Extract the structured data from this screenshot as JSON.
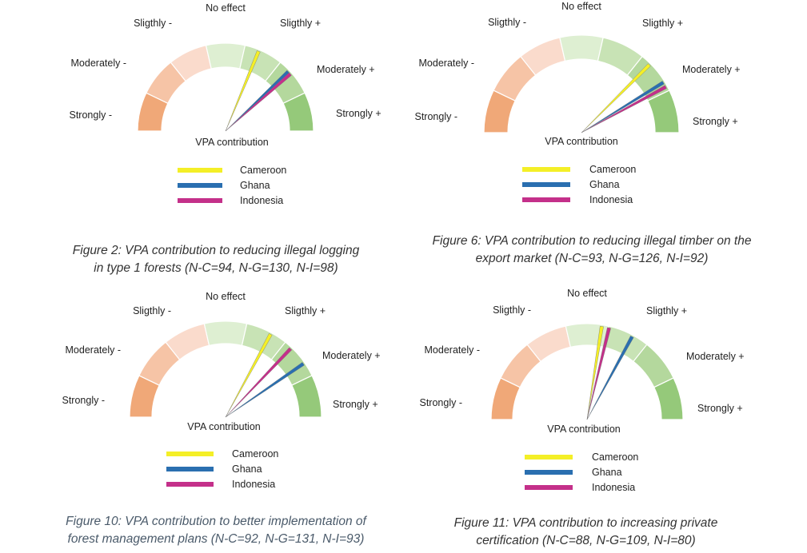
{
  "scale_labels": [
    "Strongly -",
    "Moderately -",
    "Sligthly -",
    "No effect",
    "Sligthly +",
    "Moderately +",
    "Strongly +"
  ],
  "segment_colors": [
    "#f0a878",
    "#f6c4a6",
    "#fadbcc",
    "#deefd2",
    "#c8e3b5",
    "#b4d89d",
    "#95c97a"
  ],
  "center_label": "VPA contribution",
  "series_colors": {
    "Cameroon": "#f4ef27",
    "Ghana": "#2a6fb0",
    "Indonesia": "#c4308a"
  },
  "chart_data": [
    {
      "type": "gauge",
      "title": "Figure 2: VPA contribution to reducing illegal logging in type 1 forests (N-C=94, N-G=130, N-I=98)",
      "caption_lines": [
        "Figure 2: VPA contribution to reducing illegal logging",
        "in type 1 forests (N-C=94, N-G=130, N-I=98)"
      ],
      "scale": {
        "min": -3,
        "max": 3
      },
      "series": [
        {
          "name": "Cameroon",
          "value": 0.75
        },
        {
          "name": "Ghana",
          "value": 1.55
        },
        {
          "name": "Indonesia",
          "value": 1.62
        }
      ]
    },
    {
      "type": "gauge",
      "title": "Figure 6: VPA contribution to reducing illegal timber on the export market (N-C=93, N-G=126, N-I=92)",
      "caption_lines": [
        "Figure 6: VPA contribution to reducing illegal timber on the",
        "export market (N-C=93, N-G=126, N-I=92)"
      ],
      "scale": {
        "min": -3,
        "max": 3
      },
      "series": [
        {
          "name": "Cameroon",
          "value": 1.5
        },
        {
          "name": "Ghana",
          "value": 1.95
        },
        {
          "name": "Indonesia",
          "value": 2.05
        }
      ]
    },
    {
      "type": "gauge",
      "title": "Figure 10: VPA contribution to better implementation of forest management plans (N-C=92, N-G=131, N-I=93)",
      "caption_lines": [
        "Figure 10: VPA contribution to better implementation of",
        "forest management plans (N-C=92, N-G=131, N-I=93)"
      ],
      "scale": {
        "min": -3,
        "max": 3
      },
      "series": [
        {
          "name": "Cameroon",
          "value": 0.95
        },
        {
          "name": "Ghana",
          "value": 1.85
        },
        {
          "name": "Indonesia",
          "value": 1.45
        }
      ]
    },
    {
      "type": "gauge",
      "title": "Figure 11: VPA contribution to increasing private certification (N-C=88, N-G=109, N-I=80)",
      "caption_lines": [
        "Figure 11: VPA contribution to increasing private",
        "certification (N-C=88, N-G=109, N-I=80)"
      ],
      "scale": {
        "min": -3,
        "max": 3
      },
      "series": [
        {
          "name": "Cameroon",
          "value": 0.3
        },
        {
          "name": "Ghana",
          "value": 0.95
        },
        {
          "name": "Indonesia",
          "value": 0.45
        }
      ]
    }
  ]
}
